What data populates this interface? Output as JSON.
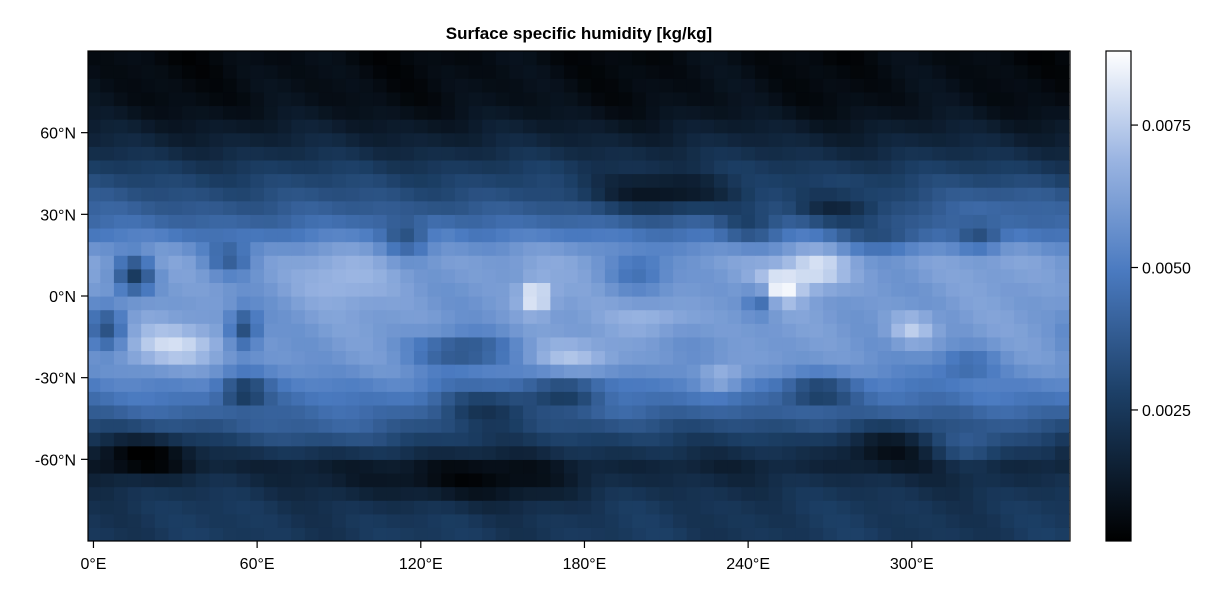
{
  "chart_data": {
    "type": "heatmap",
    "title": "Surface specific humidity [kg/kg]",
    "xlabel": "",
    "ylabel": "",
    "x_ticks": [
      {
        "value": 0,
        "label": "0°E"
      },
      {
        "value": 60,
        "label": "60°E"
      },
      {
        "value": 120,
        "label": "120°E"
      },
      {
        "value": 180,
        "label": "180°E"
      },
      {
        "value": 240,
        "label": "240°E"
      },
      {
        "value": 300,
        "label": "300°E"
      }
    ],
    "y_ticks": [
      {
        "value": 60,
        "label": "60°N"
      },
      {
        "value": 30,
        "label": "30°N"
      },
      {
        "value": 0,
        "label": "0°N"
      },
      {
        "value": -30,
        "label": "-30°N"
      },
      {
        "value": -60,
        "label": "-60°N"
      }
    ],
    "xlim": [
      -2,
      358
    ],
    "ylim": [
      -90,
      90
    ],
    "colorbar": {
      "colormap": "blues-dark",
      "range": [
        0.0002,
        0.0088
      ],
      "ticks": [
        {
          "value": 0.0025,
          "label": "0.0025"
        },
        {
          "value": 0.005,
          "label": "0.0050"
        },
        {
          "value": 0.0075,
          "label": "0.0075"
        }
      ]
    },
    "grid": false,
    "field": {
      "lon_step_deg": 5,
      "lat_step_deg": 5,
      "lon_start_deg": 0,
      "lat_start_deg": -87.5,
      "zonal_profile": [
        {
          "lat": -90,
          "q": 0.0025
        },
        {
          "lat": -75,
          "q": 0.0024
        },
        {
          "lat": -62,
          "q": 0.0017
        },
        {
          "lat": -50,
          "q": 0.003
        },
        {
          "lat": -40,
          "q": 0.0045
        },
        {
          "lat": -25,
          "q": 0.0058
        },
        {
          "lat": -10,
          "q": 0.006
        },
        {
          "lat": 0,
          "q": 0.006
        },
        {
          "lat": 15,
          "q": 0.0062
        },
        {
          "lat": 25,
          "q": 0.0045
        },
        {
          "lat": 35,
          "q": 0.0035
        },
        {
          "lat": 45,
          "q": 0.0028
        },
        {
          "lat": 55,
          "q": 0.0018
        },
        {
          "lat": 70,
          "q": 0.0008
        },
        {
          "lat": 90,
          "q": 0.0006
        }
      ],
      "features": [
        {
          "lon": 162,
          "lat": 0,
          "amp": 0.0028,
          "wlon": 4,
          "wlat": 4
        },
        {
          "lon": 250,
          "lat": 3,
          "amp": 0.003,
          "wlon": 6,
          "wlat": 4
        },
        {
          "lon": 265,
          "lat": 10,
          "amp": 0.002,
          "wlon": 8,
          "wlat": 5
        },
        {
          "lon": 230,
          "lat": -30,
          "amp": 0.0017,
          "wlon": 6,
          "wlat": 4
        },
        {
          "lon": 300,
          "lat": -12,
          "amp": 0.0016,
          "wlon": 6,
          "wlat": 4
        },
        {
          "lon": 30,
          "lat": -18,
          "amp": 0.0018,
          "wlon": 14,
          "wlat": 5
        },
        {
          "lon": 175,
          "lat": -22,
          "amp": 0.0012,
          "wlon": 12,
          "wlat": 4
        },
        {
          "lon": 205,
          "lat": -8,
          "amp": 0.001,
          "wlon": 10,
          "wlat": 4
        },
        {
          "lon": 90,
          "lat": 5,
          "amp": 0.0008,
          "wlon": 12,
          "wlat": 6
        },
        {
          "lon": 15,
          "lat": 8,
          "amp": -0.0035,
          "wlon": 5,
          "wlat": 5
        },
        {
          "lon": 55,
          "lat": -12,
          "amp": -0.0028,
          "wlon": 4,
          "wlat": 5
        },
        {
          "lon": 5,
          "lat": -12,
          "amp": -0.0025,
          "wlon": 5,
          "wlat": 6
        },
        {
          "lon": 245,
          "lat": 0,
          "amp": -0.0028,
          "wlon": 4,
          "wlat": 4
        },
        {
          "lon": 135,
          "lat": -20,
          "amp": -0.0025,
          "wlon": 12,
          "wlat": 4
        },
        {
          "lon": 55,
          "lat": -35,
          "amp": -0.0025,
          "wlon": 6,
          "wlat": 4
        },
        {
          "lon": 175,
          "lat": -35,
          "amp": -0.0022,
          "wlon": 10,
          "wlat": 4
        },
        {
          "lon": 265,
          "lat": -35,
          "amp": -0.0025,
          "wlon": 10,
          "wlat": 4
        },
        {
          "lon": 145,
          "lat": -40,
          "amp": -0.0018,
          "wlon": 14,
          "wlat": 5
        },
        {
          "lon": 320,
          "lat": -25,
          "amp": -0.0015,
          "wlon": 8,
          "wlat": 4
        },
        {
          "lon": 115,
          "lat": 22,
          "amp": -0.002,
          "wlon": 6,
          "wlat": 5
        },
        {
          "lon": 50,
          "lat": 14,
          "amp": -0.002,
          "wlon": 6,
          "wlat": 4
        },
        {
          "lon": 200,
          "lat": 10,
          "amp": -0.0015,
          "wlon": 8,
          "wlat": 5
        },
        {
          "lon": 240,
          "lat": 25,
          "amp": -0.0015,
          "wlon": 8,
          "wlat": 5
        },
        {
          "lon": 290,
          "lat": 22,
          "amp": -0.0015,
          "wlon": 12,
          "wlat": 4
        },
        {
          "lon": 325,
          "lat": 22,
          "amp": -0.0018,
          "wlon": 6,
          "wlat": 4
        },
        {
          "lon": 210,
          "lat": 38,
          "amp": -0.0022,
          "wlon": 22,
          "wlat": 5
        },
        {
          "lon": 272,
          "lat": 32,
          "amp": -0.0018,
          "wlon": 12,
          "wlat": 4
        },
        {
          "lon": 20,
          "lat": -58,
          "amp": -0.002,
          "wlon": 14,
          "wlat": 5
        },
        {
          "lon": 135,
          "lat": -68,
          "amp": -0.0015,
          "wlon": 30,
          "wlat": 6
        },
        {
          "lon": 290,
          "lat": -55,
          "amp": -0.0015,
          "wlon": 14,
          "wlat": 5
        },
        {
          "lon": 120,
          "lat": 25,
          "amp": 0.0008,
          "wlon": 12,
          "wlat": 4
        },
        {
          "lon": 320,
          "lat": -55,
          "amp": 0.0015,
          "wlon": 10,
          "wlat": 5
        },
        {
          "lon": 80,
          "lat": -50,
          "amp": 0.001,
          "wlon": 20,
          "wlat": 5
        },
        {
          "lon": 340,
          "lat": 35,
          "amp": 0.0006,
          "wlon": 15,
          "wlat": 5
        }
      ]
    }
  }
}
